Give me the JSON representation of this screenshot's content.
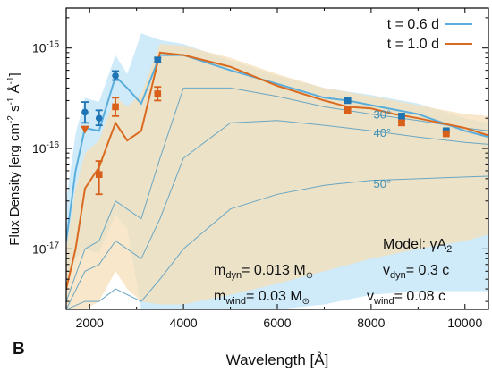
{
  "panel_label": "B",
  "chart_data": {
    "type": "line",
    "xlabel": "Wavelength [Å]",
    "ylabel": {
      "main": "Flux Density [erg cm",
      "sup1": "-2",
      "mid": " s",
      "sup2": "-1",
      "end": " Å",
      "sup3": "-1",
      "close": "]"
    },
    "xlim": [
      1500,
      10500
    ],
    "ylim": [
      2.5e-18,
      2.5e-15
    ],
    "yscale": "log",
    "xticks": [
      2000,
      4000,
      6000,
      8000,
      10000
    ],
    "xtick_labels": [
      "2000",
      "4000",
      "6000",
      "8000",
      "10000"
    ],
    "yticks": [
      {
        "value": 1e-17,
        "mantissa": "10",
        "exp": "-17"
      },
      {
        "value": 1e-16,
        "mantissa": "10",
        "exp": "-16"
      },
      {
        "value": 1e-15,
        "mantissa": "10",
        "exp": "-15"
      }
    ],
    "legend_position": "top-right",
    "series": [
      {
        "name": "t = 0.6 d",
        "color": "#5aaedc",
        "x": [
          1500,
          1700,
          1900,
          2200,
          2550,
          2800,
          3100,
          3500,
          4000,
          5000,
          6000,
          7000,
          7500,
          8000,
          9000,
          10000,
          10500
        ],
        "y": [
          1.2e-17,
          6e-17,
          1.6e-16,
          1.5e-16,
          5.2e-16,
          4e-16,
          2.8e-16,
          8.5e-16,
          8.5e-16,
          6e-16,
          4.4e-16,
          3.2e-16,
          3e-16,
          2.7e-16,
          2.2e-16,
          1.5e-16,
          1.3e-16
        ]
      },
      {
        "name": "t = 1.0 d",
        "color": "#d96a1f",
        "x": [
          1500,
          1700,
          1900,
          2200,
          2550,
          2800,
          3100,
          3500,
          4000,
          5000,
          6000,
          7000,
          7500,
          8000,
          8500,
          9000,
          10000,
          10500
        ],
        "y": [
          4e-18,
          1e-17,
          4e-17,
          6.5e-17,
          1.8e-16,
          1.2e-16,
          1.5e-16,
          9e-16,
          8.5e-16,
          6.5e-16,
          4.2e-16,
          3e-16,
          2.6e-16,
          2.5e-16,
          2.2e-16,
          2e-16,
          1.6e-16,
          1.35e-16
        ]
      }
    ],
    "bands": [
      {
        "series": "t = 0.6 d",
        "color": "#bfe3f5",
        "x": [
          1500,
          1700,
          1900,
          2200,
          2550,
          2800,
          3100,
          3500,
          4000,
          5000,
          6000,
          7000,
          8000,
          9000,
          10000,
          10500
        ],
        "upper": [
          3e-17,
          1.4e-16,
          3.2e-16,
          2.9e-16,
          8.5e-16,
          5.5e-16,
          1.4e-15,
          1.2e-15,
          1.1e-15,
          7.5e-16,
          5.3e-16,
          4e-16,
          3.4e-16,
          2.8e-16,
          2e-16,
          1.8e-16
        ],
        "lower": [
          4e-18,
          8e-18,
          1e-17,
          9e-18,
          2.2e-17,
          1.6e-17,
          2.5e-18,
          2.5e-18,
          2.5e-18,
          2.5e-18,
          2.5e-18,
          2.8e-18,
          3.5e-18,
          3.8e-18,
          3.8e-18,
          3.8e-18
        ]
      },
      {
        "series": "t = 1.0 d",
        "color": "#f6dfb8",
        "x": [
          1500,
          1700,
          1900,
          2200,
          2550,
          2800,
          3100,
          3500,
          4000,
          5000,
          6000,
          7000,
          8000,
          9000,
          10000,
          10500
        ],
        "upper": [
          1e-17,
          4e-17,
          9e-17,
          1.2e-16,
          3.3e-16,
          2.6e-16,
          3.5e-16,
          1.1e-15,
          1.05e-15,
          8e-16,
          5.5e-16,
          4e-16,
          3.3e-16,
          2.7e-16,
          2.2e-16,
          2.1e-16
        ],
        "lower": [
          2.5e-18,
          2.5e-18,
          2.5e-18,
          3e-18,
          6e-18,
          4e-18,
          3e-18,
          2.8e-18,
          2.8e-18,
          3.5e-18,
          4.5e-18,
          6e-18,
          8e-18,
          1e-17,
          1.2e-17,
          1.4e-17
        ]
      }
    ],
    "angle_curves": [
      {
        "label": "30°",
        "color": "#6aa6c2",
        "x": [
          1500,
          1900,
          2200,
          2550,
          3100,
          3500,
          4000,
          5000,
          6000,
          7000,
          8000,
          9000,
          10000,
          10500
        ],
        "y": [
          3e-18,
          1e-17,
          1.2e-17,
          3e-17,
          2e-17,
          8e-17,
          4e-16,
          4e-16,
          3.3e-16,
          2.6e-16,
          2.2e-16,
          1.9e-16,
          1.6e-16,
          1.5e-16
        ]
      },
      {
        "label": "40°",
        "color": "#6aa6c2",
        "x": [
          1500,
          1900,
          2200,
          2550,
          3100,
          3500,
          4000,
          5000,
          6000,
          7000,
          8000,
          9000,
          10000,
          10500
        ],
        "y": [
          2.5e-18,
          6e-18,
          7e-18,
          1.2e-17,
          8e-18,
          2e-17,
          8e-17,
          1.8e-16,
          1.9e-16,
          1.7e-16,
          1.5e-16,
          1.3e-16,
          1.15e-16,
          1.1e-16
        ]
      },
      {
        "label": "50°",
        "color": "#6aa6c2",
        "x": [
          1500,
          1900,
          2200,
          2550,
          3100,
          3500,
          4000,
          5000,
          6000,
          7000,
          8000,
          9000,
          10000,
          10500
        ],
        "y": [
          2.5e-18,
          3e-18,
          3e-18,
          4e-18,
          3e-18,
          5e-18,
          1e-17,
          2.5e-17,
          3.5e-17,
          4.3e-17,
          4.8e-17,
          5e-17,
          5.2e-17,
          5.3e-17
        ]
      }
    ],
    "points": [
      {
        "series": "t = 0.6 d",
        "shape": "circle",
        "color": "#1f74b4",
        "x": 1900,
        "y": 2.3e-16,
        "yerr_lo": 1.8e-16,
        "yerr_hi": 2.9e-16
      },
      {
        "series": "t = 0.6 d",
        "shape": "circle",
        "color": "#1f74b4",
        "x": 2200,
        "y": 2e-16,
        "yerr_lo": 1.7e-16,
        "yerr_hi": 2.4e-16
      },
      {
        "series": "t = 0.6 d",
        "shape": "circle",
        "color": "#1f74b4",
        "x": 2550,
        "y": 5.3e-16,
        "yerr_lo": 4.8e-16,
        "yerr_hi": 5.9e-16
      },
      {
        "series": "t = 0.6 d",
        "shape": "square",
        "color": "#1f74b4",
        "x": 3450,
        "y": 7.6e-16,
        "yerr_lo": 7.2e-16,
        "yerr_hi": 8e-16
      },
      {
        "series": "t = 0.6 d",
        "shape": "square",
        "color": "#1f74b4",
        "x": 7500,
        "y": 3e-16,
        "yerr_lo": 2.9e-16,
        "yerr_hi": 3.1e-16
      },
      {
        "series": "t = 0.6 d",
        "shape": "square",
        "color": "#1f74b4",
        "x": 8650,
        "y": 2.1e-16,
        "yerr_lo": 2e-16,
        "yerr_hi": 2.2e-16
      },
      {
        "series": "t = 0.6 d",
        "shape": "square",
        "color": "#1f74b4",
        "x": 9600,
        "y": 1.5e-16,
        "yerr_lo": 1.45e-16,
        "yerr_hi": 1.55e-16
      },
      {
        "series": "t = 1.0 d",
        "shape": "triangle-down",
        "color": "#d9601a",
        "x": 1900,
        "y": 1.55e-16
      },
      {
        "series": "t = 1.0 d",
        "shape": "square",
        "color": "#d9601a",
        "x": 2200,
        "y": 5.5e-17,
        "yerr_lo": 3.5e-17,
        "yerr_hi": 7.5e-17
      },
      {
        "series": "t = 1.0 d",
        "shape": "square",
        "color": "#d9601a",
        "x": 2550,
        "y": 2.6e-16,
        "yerr_lo": 2.1e-16,
        "yerr_hi": 3.2e-16
      },
      {
        "series": "t = 1.0 d",
        "shape": "square",
        "color": "#d9601a",
        "x": 3450,
        "y": 3.5e-16,
        "yerr_lo": 3e-16,
        "yerr_hi": 4.1e-16
      },
      {
        "series": "t = 1.0 d",
        "shape": "square",
        "color": "#d9601a",
        "x": 7500,
        "y": 2.4e-16,
        "yerr_lo": 2.3e-16,
        "yerr_hi": 2.5e-16
      },
      {
        "series": "t = 1.0 d",
        "shape": "square",
        "color": "#d9601a",
        "x": 8650,
        "y": 1.8e-16,
        "yerr_lo": 1.7e-16,
        "yerr_hi": 1.9e-16
      },
      {
        "series": "t = 1.0 d",
        "shape": "square",
        "color": "#d9601a",
        "x": 9600,
        "y": 1.4e-16,
        "yerr_lo": 1.35e-16,
        "yerr_hi": 1.45e-16
      }
    ],
    "annotations": {
      "model": {
        "prefix": "Model: γA",
        "sub": "2"
      },
      "m_dyn": {
        "prefix": "m",
        "sub": "dyn",
        "value": "= 0.013 M",
        "sun_sub": "⊙"
      },
      "v_dyn": {
        "prefix": "v",
        "sub": "dyn",
        "value": "= 0.3 c"
      },
      "m_wind": {
        "prefix": "m",
        "sub": "wind",
        "value": "= 0.03 M",
        "sun_sub": "⊙"
      },
      "v_wind": {
        "prefix": "v",
        "sub": "wind",
        "value": "= 0.08 c"
      }
    }
  }
}
